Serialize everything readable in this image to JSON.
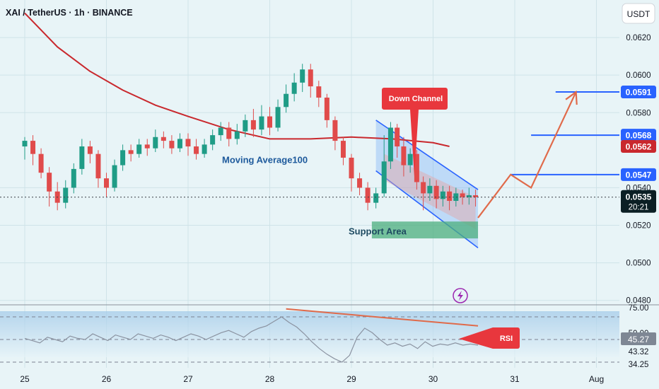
{
  "header": {
    "symbol_title": "XAI / TetherUS · 1h · BINANCE",
    "currency_button": "USDT"
  },
  "chart_data": {
    "type": "candlestick",
    "price_axis": {
      "ticks": [
        0.062,
        0.06,
        0.058,
        0.054,
        0.052,
        0.05,
        0.048
      ],
      "tick_labels": [
        "0.0620",
        "0.0600",
        "0.0580",
        "0.0540",
        "0.0520",
        "0.0500",
        "0.0480"
      ],
      "range": [
        0.0478,
        0.064
      ]
    },
    "time_axis": {
      "labels": [
        "25",
        "26",
        "27",
        "28",
        "29",
        "30",
        "31",
        "Aug"
      ]
    },
    "current_price": {
      "value": 0.0535,
      "label": "0.0535",
      "countdown": "20:21",
      "color": "#1a7f70"
    },
    "moving_average": {
      "label": "Moving Average100",
      "value": 0.0562,
      "value_label": "0.0562",
      "color": "#c9282d",
      "points": [
        [
          0,
          0.0633
        ],
        [
          0.4,
          0.0615
        ],
        [
          0.8,
          0.0602
        ],
        [
          1.2,
          0.0592
        ],
        [
          1.6,
          0.0584
        ],
        [
          2.0,
          0.0578
        ],
        [
          2.5,
          0.0571
        ],
        [
          3.0,
          0.0566
        ],
        [
          3.5,
          0.0566
        ],
        [
          4.0,
          0.0567
        ],
        [
          4.5,
          0.0566
        ],
        [
          5.0,
          0.0564
        ],
        [
          5.2,
          0.0562
        ]
      ]
    },
    "candles": [
      [
        0.0,
        0.0562,
        0.0565,
        0.0555,
        0.0567
      ],
      [
        0.1,
        0.0565,
        0.0558,
        0.0552,
        0.0568
      ],
      [
        0.2,
        0.0558,
        0.0548,
        0.0545,
        0.0561
      ],
      [
        0.3,
        0.0548,
        0.0538,
        0.053,
        0.0551
      ],
      [
        0.4,
        0.0538,
        0.0532,
        0.0528,
        0.0543
      ],
      [
        0.5,
        0.0532,
        0.054,
        0.0529,
        0.0544
      ],
      [
        0.6,
        0.054,
        0.055,
        0.0537,
        0.0553
      ],
      [
        0.7,
        0.055,
        0.0562,
        0.0547,
        0.0566
      ],
      [
        0.8,
        0.0562,
        0.0558,
        0.0553,
        0.0565
      ],
      [
        0.9,
        0.0558,
        0.0545,
        0.054,
        0.056
      ],
      [
        1.0,
        0.0545,
        0.054,
        0.0535,
        0.0548
      ],
      [
        1.1,
        0.054,
        0.0552,
        0.0538,
        0.0555
      ],
      [
        1.2,
        0.0552,
        0.056,
        0.0549,
        0.0563
      ],
      [
        1.3,
        0.056,
        0.0558,
        0.0554,
        0.0563
      ],
      [
        1.4,
        0.0558,
        0.0563,
        0.0556,
        0.0566
      ],
      [
        1.5,
        0.0563,
        0.0561,
        0.0557,
        0.0566
      ],
      [
        1.6,
        0.0561,
        0.0567,
        0.0559,
        0.0571
      ],
      [
        1.7,
        0.0567,
        0.0565,
        0.0561,
        0.057
      ],
      [
        1.8,
        0.0565,
        0.0561,
        0.0558,
        0.0568
      ],
      [
        1.9,
        0.0561,
        0.0566,
        0.0559,
        0.0569
      ],
      [
        2.0,
        0.0566,
        0.0562,
        0.0557,
        0.0569
      ],
      [
        2.1,
        0.0562,
        0.0558,
        0.0555,
        0.0566
      ],
      [
        2.2,
        0.0558,
        0.0563,
        0.0556,
        0.0566
      ],
      [
        2.3,
        0.0563,
        0.0568,
        0.056,
        0.0571
      ],
      [
        2.4,
        0.0568,
        0.0572,
        0.0565,
        0.0575
      ],
      [
        2.5,
        0.0572,
        0.0566,
        0.0562,
        0.0575
      ],
      [
        2.6,
        0.0566,
        0.057,
        0.0563,
        0.0574
      ],
      [
        2.7,
        0.057,
        0.0576,
        0.0567,
        0.0579
      ],
      [
        2.8,
        0.0576,
        0.0571,
        0.0567,
        0.0582
      ],
      [
        2.9,
        0.0571,
        0.0578,
        0.0568,
        0.0584
      ],
      [
        3.0,
        0.0578,
        0.0572,
        0.0568,
        0.0583
      ],
      [
        3.1,
        0.0572,
        0.0583,
        0.057,
        0.0587
      ],
      [
        3.2,
        0.0583,
        0.059,
        0.058,
        0.0595
      ],
      [
        3.3,
        0.059,
        0.0596,
        0.0586,
        0.0601
      ],
      [
        3.4,
        0.0596,
        0.0603,
        0.0591,
        0.0606
      ],
      [
        3.5,
        0.0603,
        0.0594,
        0.0588,
        0.0606
      ],
      [
        3.6,
        0.0594,
        0.0588,
        0.0583,
        0.0597
      ],
      [
        3.7,
        0.0588,
        0.0576,
        0.0572,
        0.059
      ],
      [
        3.8,
        0.0576,
        0.0565,
        0.056,
        0.0578
      ],
      [
        3.9,
        0.0565,
        0.0556,
        0.0552,
        0.0567
      ],
      [
        4.0,
        0.0556,
        0.0545,
        0.0538,
        0.0558
      ],
      [
        4.1,
        0.0545,
        0.054,
        0.0536,
        0.0548
      ],
      [
        4.2,
        0.054,
        0.0532,
        0.0528,
        0.0543
      ],
      [
        4.3,
        0.0532,
        0.0537,
        0.0529,
        0.054
      ],
      [
        4.4,
        0.0537,
        0.0554,
        0.0535,
        0.0568
      ],
      [
        4.48,
        0.0554,
        0.0572,
        0.055,
        0.0575
      ],
      [
        4.56,
        0.0572,
        0.0562,
        0.0556,
        0.0574
      ],
      [
        4.64,
        0.0562,
        0.0552,
        0.0546,
        0.0567
      ],
      [
        4.72,
        0.0552,
        0.0558,
        0.0548,
        0.0561
      ],
      [
        4.8,
        0.0558,
        0.0543,
        0.0539,
        0.056
      ],
      [
        4.88,
        0.0543,
        0.0537,
        0.0528,
        0.0546
      ],
      [
        4.96,
        0.0537,
        0.0541,
        0.0533,
        0.0545
      ],
      [
        5.04,
        0.0541,
        0.0534,
        0.0529,
        0.0544
      ],
      [
        5.12,
        0.0534,
        0.0538,
        0.053,
        0.0541
      ],
      [
        5.2,
        0.0538,
        0.0533,
        0.0528,
        0.0541
      ],
      [
        5.28,
        0.0533,
        0.0537,
        0.053,
        0.054
      ],
      [
        5.36,
        0.0537,
        0.0535,
        0.0531,
        0.0539
      ],
      [
        5.44,
        0.0535,
        0.0536,
        0.0531,
        0.054
      ],
      [
        5.52,
        0.0536,
        0.0535,
        0.053,
        0.0539
      ]
    ],
    "candle_colors": {
      "up": "#1f9c86",
      "down": "#e04b4b"
    },
    "horizontal_levels": [
      {
        "value": 0.0591,
        "label": "0.0591",
        "color": "#2962ff"
      },
      {
        "value": 0.0568,
        "label": "0.0568",
        "color": "#2962ff"
      },
      {
        "value": 0.0547,
        "label": "0.0547",
        "color": "#2962ff"
      }
    ],
    "annotations": {
      "down_channel": "Down Channel",
      "support_area": "Support Area",
      "rsi_callout": "RSI"
    },
    "projection_path": [
      [
        5.55,
        0.0524
      ],
      [
        5.95,
        0.0547
      ],
      [
        6.2,
        0.054
      ],
      [
        6.75,
        0.0591
      ]
    ],
    "rsi": {
      "label_values": [
        "75.00",
        "50.00",
        "45.27",
        "43.32",
        "34.25"
      ],
      "current": 45.27,
      "current_label": "45.27",
      "levels": [
        70,
        50,
        30
      ],
      "range": [
        25,
        80
      ],
      "color": "#8b93a1",
      "trendline": [
        [
          3.2,
          77
        ],
        [
          5.55,
          62
        ]
      ],
      "values": [
        51,
        49,
        47,
        52,
        50,
        48,
        53,
        51,
        50,
        55,
        52,
        49,
        54,
        52,
        50,
        55,
        53,
        51,
        54,
        52,
        49,
        52,
        55,
        53,
        50,
        53,
        56,
        58,
        55,
        52,
        57,
        60,
        62,
        66,
        70,
        65,
        61,
        55,
        48,
        42,
        37,
        33,
        30,
        36,
        52,
        60,
        56,
        50,
        45,
        47,
        44,
        46,
        42,
        48,
        44,
        46,
        45,
        47,
        45,
        46,
        45
      ]
    },
    "colors": {
      "background": "#e8f4f7",
      "grid": "#cfe3e8",
      "axis_text": "#131722"
    }
  }
}
